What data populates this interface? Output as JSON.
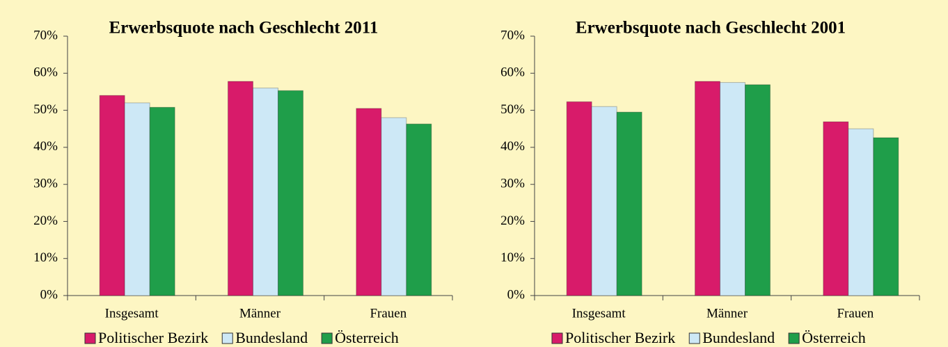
{
  "chart_data": [
    {
      "type": "bar",
      "title": "Erwerbsquote nach Geschlecht 2011",
      "categories": [
        "Insgesamt",
        "Männer",
        "Frauen"
      ],
      "series": [
        {
          "name": "Politischer Bezirk",
          "color": "#d81b6a",
          "values": [
            54,
            57.8,
            50.5
          ]
        },
        {
          "name": "Bundesland",
          "color": "#cde8f6",
          "values": [
            52,
            56,
            48
          ]
        },
        {
          "name": "Österreich",
          "color": "#1f9e4a",
          "values": [
            50.8,
            55.3,
            46.3
          ]
        }
      ],
      "ylim": [
        0,
        70
      ],
      "yticks": [
        {
          "value": 0,
          "label": "0%"
        },
        {
          "value": 10,
          "label": "10%"
        },
        {
          "value": 20,
          "label": "20%"
        },
        {
          "value": 30,
          "label": "30%"
        },
        {
          "value": 40,
          "label": "40%"
        },
        {
          "value": 50,
          "label": "50%"
        },
        {
          "value": 60,
          "label": "60%"
        },
        {
          "value": 70,
          "label": "70%"
        }
      ],
      "legend": "bottom"
    },
    {
      "type": "bar",
      "title": "Erwerbsquote nach Geschlecht 2001",
      "categories": [
        "Insgesamt",
        "Männer",
        "Frauen"
      ],
      "series": [
        {
          "name": "Politischer Bezirk",
          "color": "#d81b6a",
          "values": [
            52.3,
            57.8,
            46.9
          ]
        },
        {
          "name": "Bundesland",
          "color": "#cde8f6",
          "values": [
            51,
            57.5,
            45
          ]
        },
        {
          "name": "Österreich",
          "color": "#1f9e4a",
          "values": [
            49.5,
            56.9,
            42.6
          ]
        }
      ],
      "ylim": [
        0,
        70
      ],
      "yticks": [
        {
          "value": 0,
          "label": "0%"
        },
        {
          "value": 10,
          "label": "10%"
        },
        {
          "value": 20,
          "label": "20%"
        },
        {
          "value": 30,
          "label": "30%"
        },
        {
          "value": 40,
          "label": "40%"
        },
        {
          "value": 50,
          "label": "50%"
        },
        {
          "value": 60,
          "label": "60%"
        },
        {
          "value": 70,
          "label": "70%"
        }
      ],
      "legend": "bottom"
    }
  ]
}
